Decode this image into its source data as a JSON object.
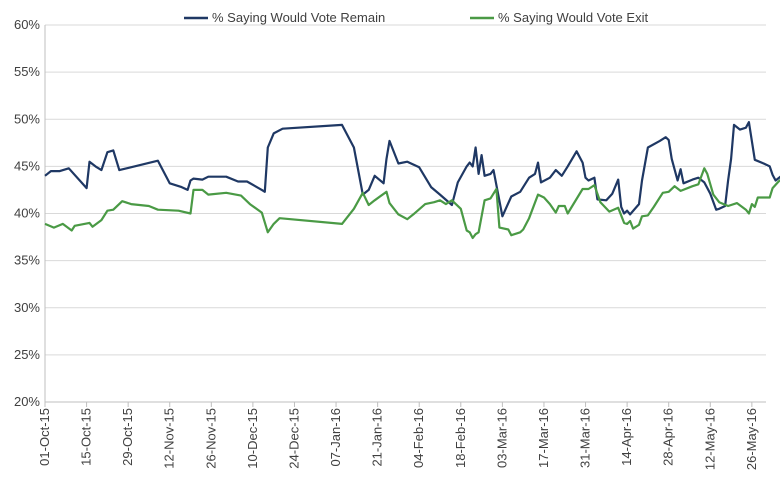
{
  "chart_data": {
    "type": "line",
    "title": "",
    "xlabel": "",
    "ylabel": "",
    "ylim": [
      20,
      60
    ],
    "xlim": [
      "2015-10-01",
      "2016-06-08"
    ],
    "y_ticks": [
      20,
      25,
      30,
      35,
      40,
      45,
      50,
      55,
      60
    ],
    "y_tick_labels": [
      "20%",
      "25%",
      "30%",
      "35%",
      "40%",
      "45%",
      "50%",
      "55%",
      "60%"
    ],
    "x_ticks": [
      "2015-10-01",
      "2015-10-15",
      "2015-10-29",
      "2015-11-12",
      "2015-11-26",
      "2015-12-10",
      "2015-12-24",
      "2016-01-07",
      "2016-01-21",
      "2016-02-04",
      "2016-02-18",
      "2016-03-03",
      "2016-03-17",
      "2016-03-31",
      "2016-04-14",
      "2016-04-28",
      "2016-05-12",
      "2016-05-26"
    ],
    "x_tick_labels": [
      "01-Oct-15",
      "15-Oct-15",
      "29-Oct-15",
      "12-Nov-15",
      "26-Nov-15",
      "10-Dec-15",
      "24-Dec-15",
      "07-Jan-16",
      "21-Jan-16",
      "04-Feb-16",
      "18-Feb-16",
      "03-Mar-16",
      "17-Mar-16",
      "31-Mar-16",
      "14-Apr-16",
      "28-Apr-16",
      "12-May-16",
      "26-May-16"
    ],
    "grid": "horizontal",
    "legend_position": "top",
    "series": [
      {
        "name": "% Saying Would Vote Remain",
        "color": "#1f3864",
        "points": [
          [
            "2015-10-01",
            44.0
          ],
          [
            "2015-10-03",
            44.5
          ],
          [
            "2015-10-06",
            44.5
          ],
          [
            "2015-10-09",
            44.8
          ],
          [
            "2015-10-15",
            42.7
          ],
          [
            "2015-10-16",
            45.5
          ],
          [
            "2015-10-18",
            45.0
          ],
          [
            "2015-10-20",
            44.6
          ],
          [
            "2015-10-22",
            46.5
          ],
          [
            "2015-10-24",
            46.7
          ],
          [
            "2015-10-26",
            44.6
          ],
          [
            "2015-11-08",
            45.6
          ],
          [
            "2015-11-12",
            43.2
          ],
          [
            "2015-11-16",
            42.8
          ],
          [
            "2015-11-18",
            42.5
          ],
          [
            "2015-11-19",
            43.5
          ],
          [
            "2015-11-20",
            43.7
          ],
          [
            "2015-11-23",
            43.6
          ],
          [
            "2015-11-25",
            43.9
          ],
          [
            "2015-12-01",
            43.9
          ],
          [
            "2015-12-05",
            43.4
          ],
          [
            "2015-12-08",
            43.4
          ],
          [
            "2015-12-13",
            42.5
          ],
          [
            "2015-12-14",
            42.3
          ],
          [
            "2015-12-15",
            47.0
          ],
          [
            "2015-12-17",
            48.5
          ],
          [
            "2015-12-20",
            49.0
          ],
          [
            "2016-01-09",
            49.4
          ],
          [
            "2016-01-13",
            47.0
          ],
          [
            "2016-01-16",
            42.0
          ],
          [
            "2016-01-18",
            42.5
          ],
          [
            "2016-01-20",
            44.0
          ],
          [
            "2016-01-23",
            43.2
          ],
          [
            "2016-01-24",
            45.8
          ],
          [
            "2016-01-25",
            47.7
          ],
          [
            "2016-01-28",
            45.3
          ],
          [
            "2016-01-31",
            45.5
          ],
          [
            "2016-02-04",
            44.9
          ],
          [
            "2016-02-08",
            42.8
          ],
          [
            "2016-02-11",
            42.0
          ],
          [
            "2016-02-15",
            40.9
          ],
          [
            "2016-02-17",
            43.3
          ],
          [
            "2016-02-20",
            45.0
          ],
          [
            "2016-02-21",
            45.4
          ],
          [
            "2016-02-22",
            45.0
          ],
          [
            "2016-02-23",
            47.0
          ],
          [
            "2016-02-24",
            44.2
          ],
          [
            "2016-02-25",
            46.2
          ],
          [
            "2016-02-26",
            44.0
          ],
          [
            "2016-02-28",
            44.2
          ],
          [
            "2016-02-29",
            44.6
          ],
          [
            "2016-03-03",
            39.7
          ],
          [
            "2016-03-06",
            41.8
          ],
          [
            "2016-03-09",
            42.3
          ],
          [
            "2016-03-12",
            43.8
          ],
          [
            "2016-03-14",
            44.2
          ],
          [
            "2016-03-15",
            45.4
          ],
          [
            "2016-03-16",
            43.3
          ],
          [
            "2016-03-19",
            43.8
          ],
          [
            "2016-03-21",
            44.6
          ],
          [
            "2016-03-23",
            44.0
          ],
          [
            "2016-03-25",
            45.0
          ],
          [
            "2016-03-28",
            46.6
          ],
          [
            "2016-03-30",
            45.4
          ],
          [
            "2016-03-31",
            43.8
          ],
          [
            "2016-04-01",
            43.5
          ],
          [
            "2016-04-03",
            43.8
          ],
          [
            "2016-04-04",
            41.5
          ],
          [
            "2016-04-07",
            41.4
          ],
          [
            "2016-04-09",
            42.1
          ],
          [
            "2016-04-11",
            43.6
          ],
          [
            "2016-04-12",
            40.7
          ],
          [
            "2016-04-13",
            40.0
          ],
          [
            "2016-04-14",
            40.3
          ],
          [
            "2016-04-15",
            39.9
          ],
          [
            "2016-04-18",
            41.0
          ],
          [
            "2016-04-19",
            43.5
          ],
          [
            "2016-04-21",
            47.0
          ],
          [
            "2016-04-25",
            47.7
          ],
          [
            "2016-04-27",
            48.1
          ],
          [
            "2016-04-28",
            47.8
          ],
          [
            "2016-04-29",
            45.8
          ],
          [
            "2016-05-01",
            43.5
          ],
          [
            "2016-05-02",
            44.7
          ],
          [
            "2016-05-03",
            43.2
          ],
          [
            "2016-05-06",
            43.6
          ],
          [
            "2016-05-08",
            43.8
          ],
          [
            "2016-05-10",
            43.3
          ],
          [
            "2016-05-12",
            42.1
          ],
          [
            "2016-05-14",
            40.4
          ],
          [
            "2016-05-15",
            40.5
          ],
          [
            "2016-05-17",
            40.8
          ],
          [
            "2016-05-18",
            43.5
          ],
          [
            "2016-05-19",
            45.8
          ],
          [
            "2016-05-20",
            49.4
          ],
          [
            "2016-05-22",
            48.9
          ],
          [
            "2016-05-24",
            49.1
          ],
          [
            "2016-05-25",
            49.7
          ],
          [
            "2016-05-27",
            45.7
          ],
          [
            "2016-05-30",
            45.3
          ],
          [
            "2016-06-01",
            45.0
          ],
          [
            "2016-06-02",
            44.1
          ],
          [
            "2016-06-03",
            43.5
          ],
          [
            "2016-06-05",
            44.0
          ],
          [
            "2016-06-06",
            43.8
          ],
          [
            "2016-06-07",
            44.0
          ],
          [
            "2016-06-08",
            44.3
          ]
        ]
      },
      {
        "name": "% Saying Would Vote Exit",
        "color": "#4a9a45",
        "points": [
          [
            "2015-10-01",
            38.9
          ],
          [
            "2015-10-04",
            38.5
          ],
          [
            "2015-10-07",
            38.9
          ],
          [
            "2015-10-10",
            38.2
          ],
          [
            "2015-10-11",
            38.7
          ],
          [
            "2015-10-16",
            39.0
          ],
          [
            "2015-10-17",
            38.6
          ],
          [
            "2015-10-20",
            39.3
          ],
          [
            "2015-10-22",
            40.3
          ],
          [
            "2015-10-24",
            40.4
          ],
          [
            "2015-10-27",
            41.3
          ],
          [
            "2015-10-30",
            41.0
          ],
          [
            "2015-11-05",
            40.8
          ],
          [
            "2015-11-08",
            40.4
          ],
          [
            "2015-11-15",
            40.3
          ],
          [
            "2015-11-19",
            40.0
          ],
          [
            "2015-11-20",
            42.5
          ],
          [
            "2015-11-23",
            42.5
          ],
          [
            "2015-11-25",
            42.0
          ],
          [
            "2015-12-01",
            42.2
          ],
          [
            "2015-12-06",
            41.9
          ],
          [
            "2015-12-09",
            41.0
          ],
          [
            "2015-12-13",
            40.1
          ],
          [
            "2015-12-15",
            38.0
          ],
          [
            "2015-12-17",
            38.9
          ],
          [
            "2015-12-19",
            39.5
          ],
          [
            "2016-01-09",
            38.9
          ],
          [
            "2016-01-13",
            40.5
          ],
          [
            "2016-01-16",
            42.2
          ],
          [
            "2016-01-18",
            40.9
          ],
          [
            "2016-01-20",
            41.4
          ],
          [
            "2016-01-24",
            42.3
          ],
          [
            "2016-01-25",
            41.1
          ],
          [
            "2016-01-28",
            39.9
          ],
          [
            "2016-01-31",
            39.4
          ],
          [
            "2016-02-02",
            39.9
          ],
          [
            "2016-02-06",
            41.0
          ],
          [
            "2016-02-09",
            41.2
          ],
          [
            "2016-02-11",
            41.4
          ],
          [
            "2016-02-13",
            41.0
          ],
          [
            "2016-02-15",
            41.4
          ],
          [
            "2016-02-18",
            40.5
          ],
          [
            "2016-02-20",
            38.2
          ],
          [
            "2016-02-21",
            38.0
          ],
          [
            "2016-02-22",
            37.4
          ],
          [
            "2016-02-23",
            37.8
          ],
          [
            "2016-02-24",
            38.0
          ],
          [
            "2016-02-26",
            41.4
          ],
          [
            "2016-02-28",
            41.6
          ],
          [
            "2016-03-01",
            42.6
          ],
          [
            "2016-03-02",
            38.5
          ],
          [
            "2016-03-05",
            38.3
          ],
          [
            "2016-03-06",
            37.7
          ],
          [
            "2016-03-09",
            38.0
          ],
          [
            "2016-03-10",
            38.3
          ],
          [
            "2016-03-12",
            39.5
          ],
          [
            "2016-03-15",
            42.0
          ],
          [
            "2016-03-17",
            41.7
          ],
          [
            "2016-03-19",
            41.0
          ],
          [
            "2016-03-21",
            40.1
          ],
          [
            "2016-03-22",
            40.8
          ],
          [
            "2016-03-24",
            40.8
          ],
          [
            "2016-03-25",
            40.0
          ],
          [
            "2016-03-30",
            42.6
          ],
          [
            "2016-04-01",
            42.6
          ],
          [
            "2016-04-03",
            43.0
          ],
          [
            "2016-04-05",
            41.2
          ],
          [
            "2016-04-08",
            40.2
          ],
          [
            "2016-04-11",
            40.6
          ],
          [
            "2016-04-13",
            39.0
          ],
          [
            "2016-04-14",
            38.9
          ],
          [
            "2016-04-15",
            39.2
          ],
          [
            "2016-04-16",
            38.4
          ],
          [
            "2016-04-18",
            38.8
          ],
          [
            "2016-04-19",
            39.7
          ],
          [
            "2016-04-21",
            39.8
          ],
          [
            "2016-04-23",
            40.7
          ],
          [
            "2016-04-26",
            42.2
          ],
          [
            "2016-04-28",
            42.3
          ],
          [
            "2016-04-30",
            42.9
          ],
          [
            "2016-05-02",
            42.4
          ],
          [
            "2016-05-06",
            42.9
          ],
          [
            "2016-05-08",
            43.1
          ],
          [
            "2016-05-10",
            44.8
          ],
          [
            "2016-05-11",
            44.2
          ],
          [
            "2016-05-13",
            42.0
          ],
          [
            "2016-05-15",
            41.2
          ],
          [
            "2016-05-18",
            40.8
          ],
          [
            "2016-05-21",
            41.1
          ],
          [
            "2016-05-24",
            40.4
          ],
          [
            "2016-05-25",
            40.0
          ],
          [
            "2016-05-26",
            41.0
          ],
          [
            "2016-05-27",
            40.7
          ],
          [
            "2016-05-28",
            41.7
          ],
          [
            "2016-06-01",
            41.7
          ],
          [
            "2016-06-02",
            42.7
          ],
          [
            "2016-06-04",
            43.4
          ],
          [
            "2016-06-06",
            43.9
          ],
          [
            "2016-06-07",
            43.4
          ],
          [
            "2016-06-08",
            44.2
          ]
        ]
      }
    ]
  }
}
